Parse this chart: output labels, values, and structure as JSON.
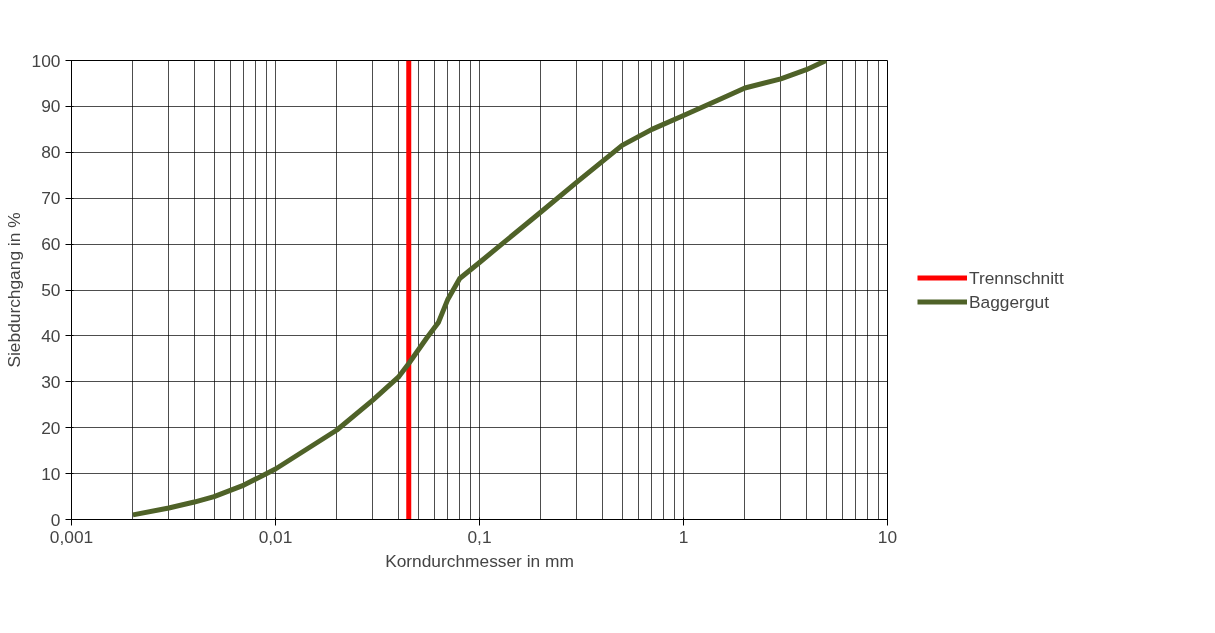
{
  "chart_data": {
    "type": "line",
    "xlabel": "Korndurchmesser in mm",
    "ylabel": "Siebdurchgang in %",
    "log": "x",
    "grid": true,
    "legend": "right",
    "line_style": "solid",
    "marker": "none",
    "xlim": [
      0.001,
      10
    ],
    "ylim": [
      0,
      100
    ],
    "xticks": [
      {
        "value": 0.001,
        "label": "0,001"
      },
      {
        "value": 0.01,
        "label": "0,01"
      },
      {
        "value": 0.1,
        "label": "0,1"
      },
      1,
      10
    ],
    "yticks": [
      0,
      10,
      20,
      30,
      40,
      50,
      60,
      70,
      80,
      90,
      100
    ],
    "series": [
      {
        "name": "Trennschnitt",
        "color": "#ff0000",
        "x": [
          0.045,
          0.045
        ],
        "values": [
          0,
          100
        ]
      },
      {
        "name": "Baggergut",
        "color": "#4f6228",
        "x": [
          0.002,
          0.003,
          0.004,
          0.005,
          0.007,
          0.01,
          0.02,
          0.03,
          0.04,
          0.045,
          0.055,
          0.063,
          0.07,
          0.08,
          0.1,
          0.2,
          0.3,
          0.5,
          0.7,
          1,
          1.5,
          2,
          3,
          4,
          5
        ],
        "values": [
          1,
          2.5,
          3.8,
          5,
          7.5,
          11,
          19.5,
          26,
          31,
          34,
          39.5,
          43,
          48,
          52.5,
          56,
          67,
          73.5,
          81.5,
          85,
          88,
          91.5,
          94,
          96,
          98,
          100
        ]
      }
    ]
  }
}
